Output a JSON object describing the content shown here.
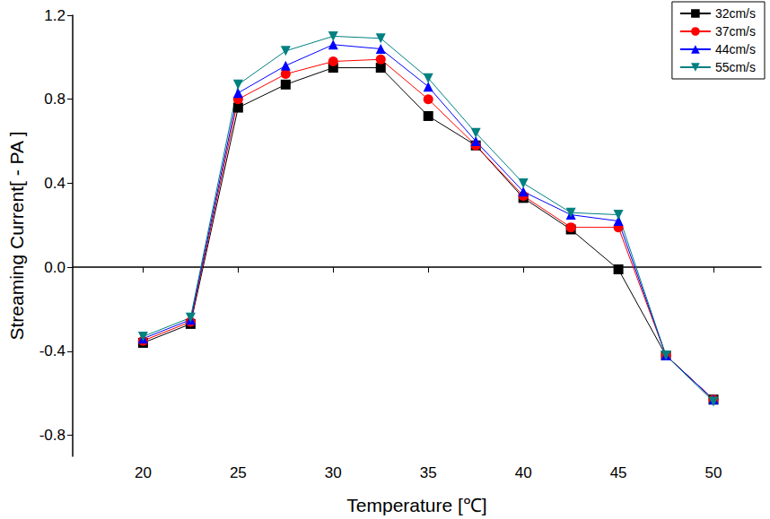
{
  "chart_data": {
    "type": "line",
    "x_label": "Temperature [℃]",
    "y_label": "Streaming Current[ - PA ]",
    "x": [
      20,
      22.5,
      25,
      27.5,
      30,
      32.5,
      35,
      37.5,
      40,
      42.5,
      45,
      47.5,
      50
    ],
    "series": [
      {
        "name": "32cm/s",
        "color": "#000000",
        "marker": "square",
        "values": [
          -0.36,
          -0.27,
          0.76,
          0.87,
          0.95,
          0.95,
          0.72,
          0.58,
          0.33,
          0.18,
          -0.01,
          -0.42,
          -0.63
        ]
      },
      {
        "name": "37cm/s",
        "color": "#ff0000",
        "marker": "circle",
        "values": [
          -0.35,
          -0.26,
          0.8,
          0.92,
          0.98,
          0.99,
          0.8,
          0.58,
          0.34,
          0.19,
          0.19,
          -0.42,
          -0.63
        ]
      },
      {
        "name": "44cm/s",
        "color": "#0000ff",
        "marker": "triangle",
        "values": [
          -0.34,
          -0.25,
          0.83,
          0.96,
          1.06,
          1.04,
          0.86,
          0.6,
          0.36,
          0.25,
          0.22,
          -0.42,
          -0.63
        ]
      },
      {
        "name": "55cm/s",
        "color": "#008080",
        "marker": "triangle_down",
        "values": [
          -0.33,
          -0.24,
          0.87,
          1.03,
          1.1,
          1.09,
          0.9,
          0.64,
          0.4,
          0.26,
          0.25,
          -0.42,
          -0.64
        ]
      }
    ],
    "xlim": [
      16.3,
      52.5
    ],
    "xticks": [
      20,
      25,
      30,
      35,
      40,
      45,
      50
    ],
    "ylim": [
      -0.9,
      1.2
    ],
    "yticks": [
      -0.8,
      -0.4,
      {
        "value": 0,
        "label": "0.0"
      },
      0.4,
      0.8,
      1.2
    ],
    "grid": false,
    "legend": "upper right"
  }
}
